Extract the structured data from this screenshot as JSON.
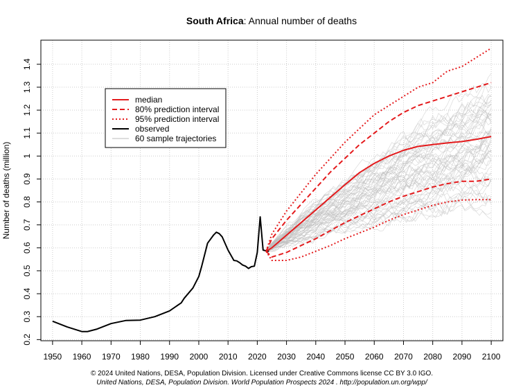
{
  "chart_data": {
    "type": "line",
    "title_bold": "South Africa",
    "title_rest": ": Annual number of deaths",
    "xlabel": "",
    "ylabel": "Number of deaths (million)",
    "xlim": [
      1946,
      2104
    ],
    "ylim": [
      0.195,
      1.505
    ],
    "x_ticks": [
      1950,
      1960,
      1970,
      1980,
      1990,
      2000,
      2010,
      2020,
      2030,
      2040,
      2050,
      2060,
      2070,
      2080,
      2090,
      2100
    ],
    "y_ticks": [
      0.2,
      0.3,
      0.4,
      0.5,
      0.6,
      0.7,
      0.8,
      0.9,
      1.0,
      1.1,
      1.2,
      1.3,
      1.4
    ],
    "y_tick_labels": [
      "0.2",
      "0.3",
      "0.4",
      "0.5",
      "0.6",
      "0.7",
      "0.8",
      "0.9",
      "1",
      "1.1",
      "1.2",
      "1.3",
      "1.4"
    ],
    "grid": true,
    "legend": {
      "position": "upper-left",
      "entries": [
        {
          "label": "median",
          "color": "#e41a1c",
          "style": "solid"
        },
        {
          "label": "80% prediction interval",
          "color": "#e41a1c",
          "style": "dashed"
        },
        {
          "label": "95% prediction interval",
          "color": "#e41a1c",
          "style": "dotted"
        },
        {
          "label": "observed",
          "color": "#000000",
          "style": "solid"
        },
        {
          "label": "60 sample trajectories",
          "color": "#bbbbbb",
          "style": "solid"
        }
      ]
    },
    "series": [
      {
        "name": "observed",
        "color": "#000000",
        "x": [
          1950,
          1955,
          1960,
          1962,
          1965,
          1970,
          1975,
          1980,
          1985,
          1990,
          1994,
          1995,
          1998,
          2000,
          2001,
          2003,
          2005,
          2006,
          2007,
          2008,
          2010,
          2012,
          2013,
          2014,
          2015,
          2016,
          2017,
          2018,
          2019,
          2020,
          2021,
          2022,
          2023,
          2024
        ],
        "values": [
          0.28,
          0.255,
          0.235,
          0.235,
          0.245,
          0.27,
          0.283,
          0.285,
          0.3,
          0.325,
          0.36,
          0.38,
          0.425,
          0.475,
          0.52,
          0.62,
          0.655,
          0.668,
          0.662,
          0.648,
          0.59,
          0.545,
          0.543,
          0.535,
          0.525,
          0.52,
          0.51,
          0.518,
          0.52,
          0.58,
          0.735,
          0.59,
          0.587,
          0.585
        ]
      },
      {
        "name": "median",
        "color": "#e41a1c",
        "x": [
          2023,
          2025,
          2030,
          2035,
          2040,
          2045,
          2050,
          2055,
          2060,
          2065,
          2070,
          2075,
          2080,
          2085,
          2090,
          2095,
          2100
        ],
        "values": [
          0.585,
          0.6,
          0.655,
          0.71,
          0.765,
          0.82,
          0.875,
          0.928,
          0.968,
          1.0,
          1.025,
          1.042,
          1.05,
          1.057,
          1.063,
          1.073,
          1.085
        ]
      },
      {
        "name": "80% upper",
        "color": "#e41a1c",
        "x": [
          2023,
          2025,
          2030,
          2035,
          2040,
          2045,
          2050,
          2055,
          2060,
          2065,
          2070,
          2075,
          2080,
          2085,
          2090,
          2095,
          2100
        ],
        "values": [
          0.585,
          0.64,
          0.72,
          0.79,
          0.86,
          0.93,
          0.99,
          1.05,
          1.1,
          1.15,
          1.19,
          1.22,
          1.24,
          1.26,
          1.28,
          1.3,
          1.32
        ]
      },
      {
        "name": "80% lower",
        "color": "#e41a1c",
        "x": [
          2023,
          2025,
          2030,
          2035,
          2040,
          2045,
          2050,
          2055,
          2060,
          2065,
          2070,
          2075,
          2080,
          2085,
          2090,
          2095,
          2100
        ],
        "values": [
          0.585,
          0.56,
          0.58,
          0.61,
          0.64,
          0.675,
          0.71,
          0.74,
          0.77,
          0.8,
          0.825,
          0.845,
          0.865,
          0.88,
          0.89,
          0.89,
          0.9
        ]
      },
      {
        "name": "95% upper",
        "color": "#e41a1c",
        "x": [
          2023,
          2025,
          2030,
          2035,
          2040,
          2045,
          2050,
          2055,
          2060,
          2065,
          2070,
          2075,
          2080,
          2085,
          2090,
          2095,
          2100
        ],
        "values": [
          0.585,
          0.66,
          0.76,
          0.84,
          0.92,
          0.99,
          1.06,
          1.12,
          1.18,
          1.22,
          1.26,
          1.3,
          1.32,
          1.37,
          1.39,
          1.43,
          1.47
        ]
      },
      {
        "name": "95% lower",
        "color": "#e41a1c",
        "x": [
          2023,
          2025,
          2030,
          2035,
          2040,
          2045,
          2050,
          2055,
          2060,
          2065,
          2070,
          2075,
          2080,
          2085,
          2090,
          2095,
          2100
        ],
        "values": [
          0.585,
          0.545,
          0.545,
          0.56,
          0.585,
          0.61,
          0.64,
          0.665,
          0.69,
          0.72,
          0.745,
          0.765,
          0.785,
          0.8,
          0.808,
          0.81,
          0.81
        ]
      }
    ],
    "sample_trajectories": {
      "count": 60,
      "color": "#bbbbbb",
      "start": [
        2023,
        0.585
      ],
      "end": [
        2100,
        1.085
      ]
    }
  },
  "footer": {
    "line1": "© 2024 United Nations, DESA, Population Division. Licensed under Creative Commons license CC BY 3.0 IGO.",
    "line2": "United Nations, DESA, Population Division. World Population Prospects 2024 .  http://population.un.org/wpp/"
  }
}
